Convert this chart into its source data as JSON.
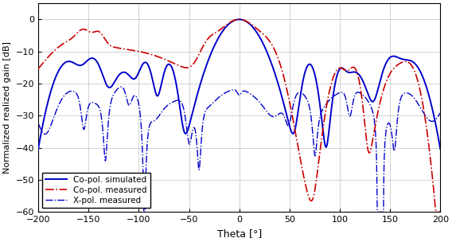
{
  "xlabel": "Theta [°]",
  "ylabel": "Normalized realized gain [dB]",
  "xlim": [
    -200,
    200
  ],
  "ylim": [
    -60,
    5
  ],
  "xticks": [
    -200,
    -150,
    -100,
    -50,
    0,
    50,
    100,
    150,
    200
  ],
  "yticks": [
    0,
    -10,
    -20,
    -30,
    -40,
    -50,
    -60
  ],
  "legend": [
    "Co-pol. simulated",
    "Co-pol. measured",
    "X-pol. measured"
  ],
  "color_copol_sim": "#0000cc",
  "color_copol_meas": "#cc0000",
  "color_xpol_meas": "#0000cc",
  "background_color": "#ffffff",
  "grid_color": "#c0c0c0"
}
